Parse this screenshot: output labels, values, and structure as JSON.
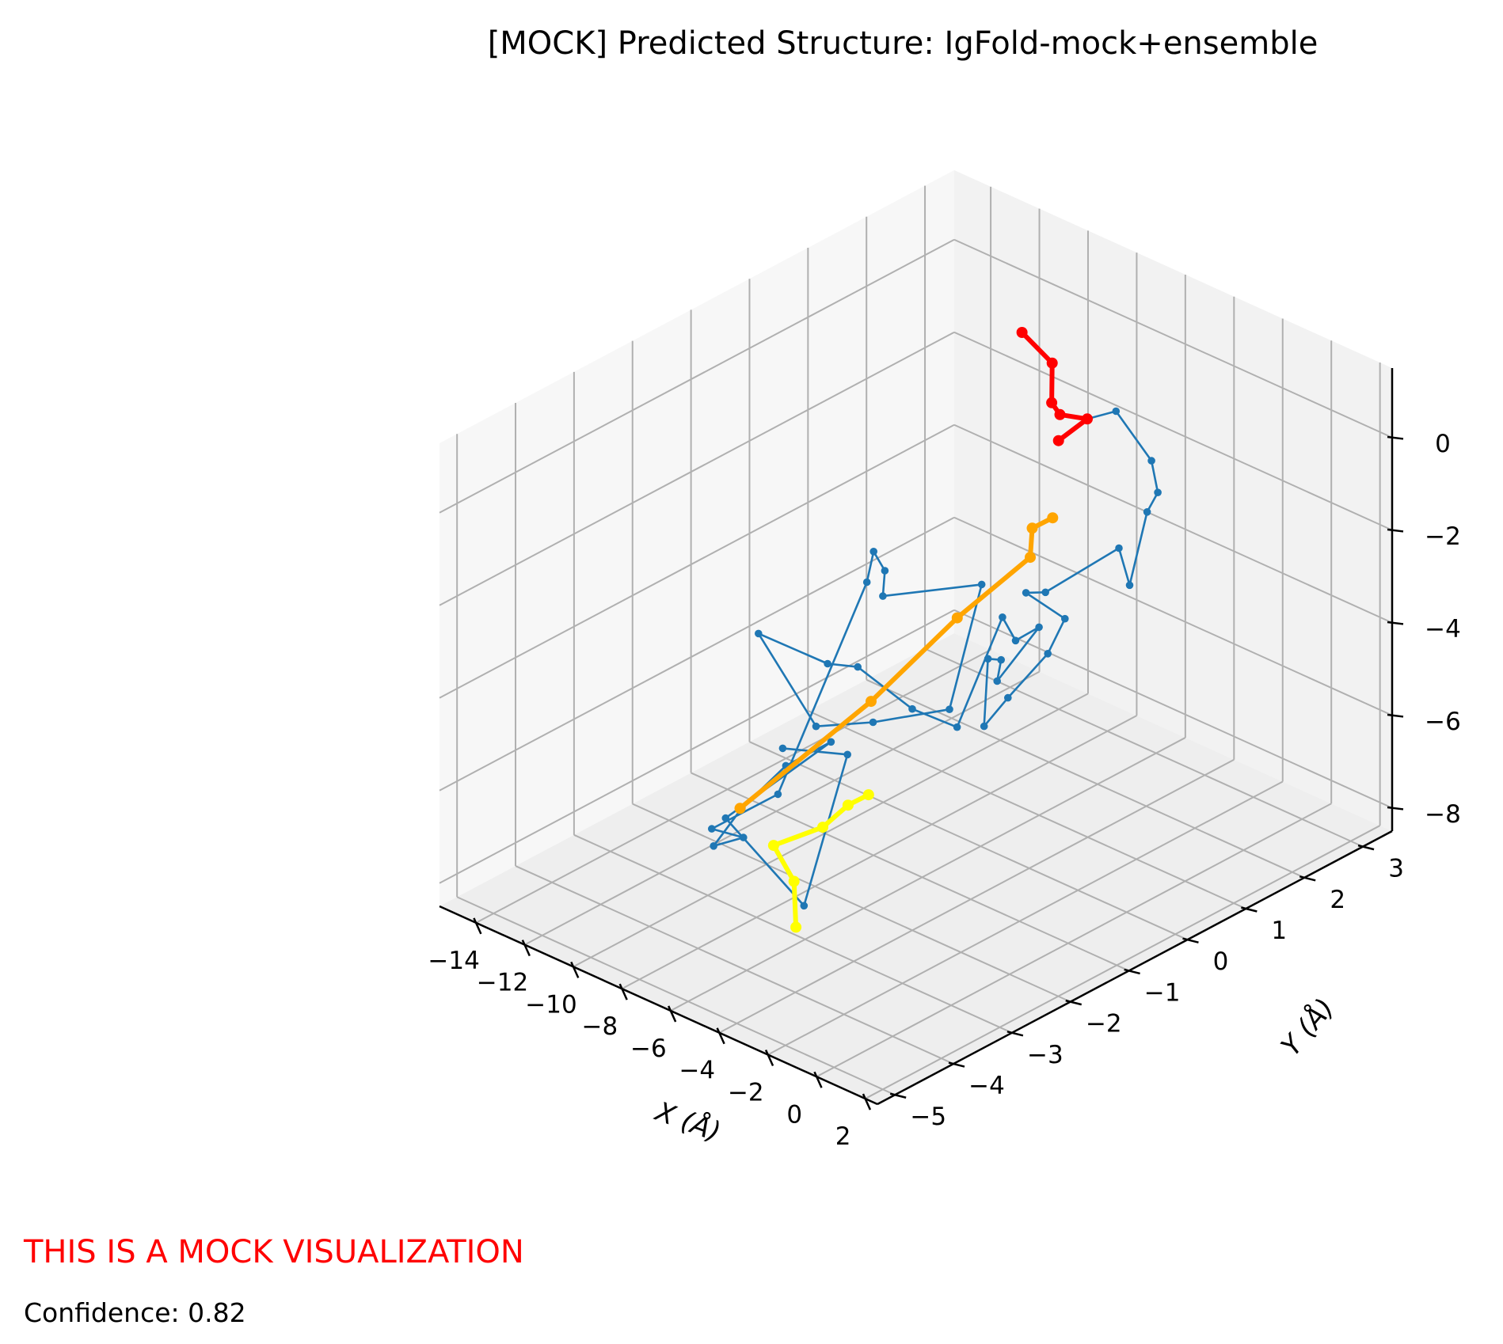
{
  "title": "[MOCK] Predicted Structure: IgFold-mock+ensemble",
  "footer": {
    "warning": "THIS IS A MOCK VISUALIZATION",
    "confidence": "Confidence: 0.82"
  },
  "colors": {
    "chain": "#1f77b4",
    "region_red": "#ff0000",
    "region_orange": "#ffa500",
    "region_yellow": "#ffff00",
    "warning_text": "#ff0000",
    "grid": "#b0b0b0",
    "pane": "#f2f2f2"
  },
  "chart_data": {
    "type": "line",
    "projection": "3d",
    "title": "[MOCK] Predicted Structure: IgFold-mock+ensemble",
    "xlabel": "X (Å)",
    "ylabel": "Y (Å)",
    "zlabel": "",
    "xlim": [
      -15.5,
      2.5
    ],
    "ylim": [
      -5.3,
      3.5
    ],
    "zlim": [
      -8.5,
      1.5
    ],
    "x_ticks": [
      -14,
      -12,
      -10,
      -8,
      -6,
      -4,
      -2,
      0,
      2
    ],
    "x_tick_labels": [
      "−14",
      "−12",
      "−10",
      "−8",
      "−6",
      "−4",
      "−2",
      "0",
      "2"
    ],
    "y_ticks": [
      -5,
      -4,
      -3,
      -2,
      -1,
      0,
      1,
      2,
      3
    ],
    "y_tick_labels": [
      "−5",
      "−4",
      "−3",
      "−2",
      "−1",
      "0",
      "1",
      "2",
      "3"
    ],
    "z_ticks": [
      -8,
      -6,
      -4,
      -2,
      0
    ],
    "z_tick_labels": [
      "−8",
      "−6",
      "−4",
      "−2",
      "0"
    ],
    "grid": true,
    "backbone": {
      "x": [
        -4.0,
        -3.3,
        -2.6,
        -0.9,
        -0.4,
        -0.6,
        -1.8,
        -3.2,
        -5.5,
        -6.3,
        -5.9,
        -5.4,
        -5.6,
        -6.1,
        -6.9,
        -5.4,
        -4.6,
        -3.6,
        -2.4,
        -2.7,
        -2.4,
        -2.8,
        -4.8,
        -5.8,
        -8.4,
        -10.6,
        -9.7,
        -6.8,
        -8.6,
        -10.5,
        -12.1,
        -11.6,
        -12.6,
        -8.8,
        -9.6,
        -9.5,
        -10.0,
        -9.8,
        -10.4,
        -7.1,
        -4.7,
        -2.2,
        -3.3,
        -5.0
      ],
      "y": [
        0.5,
        0.7,
        0.9,
        0.8,
        0.7,
        0.6,
        0.8,
        1.2,
        0.9,
        0.9,
        1.4,
        0.9,
        0.3,
        0.1,
        0.5,
        0.1,
        -0.3,
        0.0,
        -0.9,
        -1.0,
        -1.9,
        -2.5,
        -2.6,
        -2.7,
        -2.8,
        -0.9,
        -0.3,
        -0.2,
        1.1,
        0.2,
        0.9,
        0.5,
        0.8,
        -2.3,
        -3.1,
        -2.6,
        -2.9,
        -2.5,
        -1.5,
        -2.1,
        -4.9,
        -4.6,
        -3.4,
        -3.8
      ],
      "z": [
        0.4,
        0.9,
        1.1,
        0.5,
        0.0,
        -0.4,
        -2.4,
        -2.2,
        -3.5,
        -3.7,
        -4.5,
        -4.8,
        -5.4,
        -6.0,
        -5.0,
        -4.4,
        -4.4,
        -3.2,
        -2.6,
        -2.1,
        -3.8,
        -3.1,
        -2.6,
        -2.7,
        -2.6,
        -6.4,
        -6.5,
        -5.6,
        -4.2,
        -4.3,
        -4.6,
        -3.8,
        -4.9,
        -6.5,
        -6.9,
        -7.4,
        -7.5,
        -6.9,
        -6.8,
        -5.1,
        -4.3,
        -5.8,
        -3.6,
        -3.6
      ]
    },
    "highlighted_regions": [
      {
        "color": "red",
        "x": [
          -4.0,
          -3.3,
          -3.7,
          -3.8,
          -3.9,
          -4.3
        ],
        "y": [
          0.5,
          0.7,
          0.4,
          0.3,
          0.35,
          0.0
        ],
        "z": [
          0.4,
          0.9,
          1.1,
          1.4,
          2.2,
          3.0
        ]
      },
      {
        "color": "orange",
        "x": [
          -4.0,
          -4.6,
          -4.2,
          -6.0,
          -8.1,
          -10.6
        ],
        "y": [
          0.4,
          0.3,
          0.1,
          -0.4,
          -1.0,
          -2.2
        ],
        "z": [
          -1.2,
          -1.5,
          -1.9,
          -3.3,
          -5.2,
          -7.3
        ]
      },
      {
        "color": "yellow",
        "x": [
          -5.8,
          -6.4,
          -7.2,
          -8.5,
          -7.9,
          -7.1
        ],
        "y": [
          -2.0,
          -2.1,
          -2.2,
          -2.5,
          -2.4,
          -2.7
        ],
        "z": [
          -6.0,
          -6.3,
          -6.9,
          -7.4,
          -8.1,
          -8.7
        ]
      }
    ]
  }
}
